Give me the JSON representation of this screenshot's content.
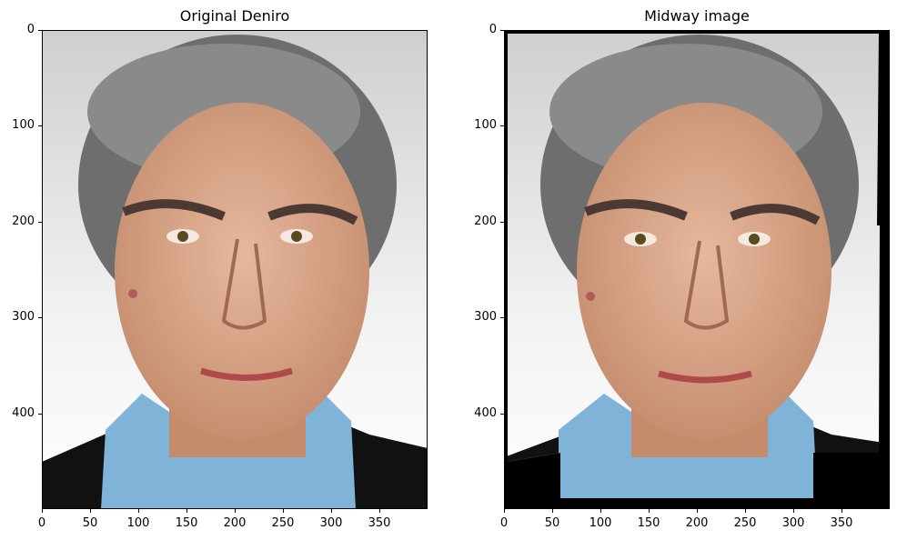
{
  "panels": [
    {
      "title": "Original Deniro",
      "image": "face-portrait",
      "x_ticks": [
        "0",
        "50",
        "100",
        "150",
        "200",
        "250",
        "300",
        "350"
      ],
      "y_ticks": [
        "0",
        "100",
        "200",
        "300",
        "400"
      ],
      "xlim": [
        0,
        400
      ],
      "ylim": [
        500,
        0
      ]
    },
    {
      "title": "Midway image",
      "image": "face-portrait-warped-black-border",
      "x_ticks": [
        "0",
        "50",
        "100",
        "150",
        "200",
        "250",
        "300",
        "350"
      ],
      "y_ticks": [
        "0",
        "100",
        "200",
        "300",
        "400"
      ],
      "xlim": [
        0,
        400
      ],
      "ylim": [
        500,
        0
      ]
    }
  ],
  "colors": {
    "background": "#d8d8d8",
    "skin": "#d9a48a",
    "shirt": "#7fb3d8",
    "jacket": "#111111",
    "hair": "#6e6e6e"
  }
}
